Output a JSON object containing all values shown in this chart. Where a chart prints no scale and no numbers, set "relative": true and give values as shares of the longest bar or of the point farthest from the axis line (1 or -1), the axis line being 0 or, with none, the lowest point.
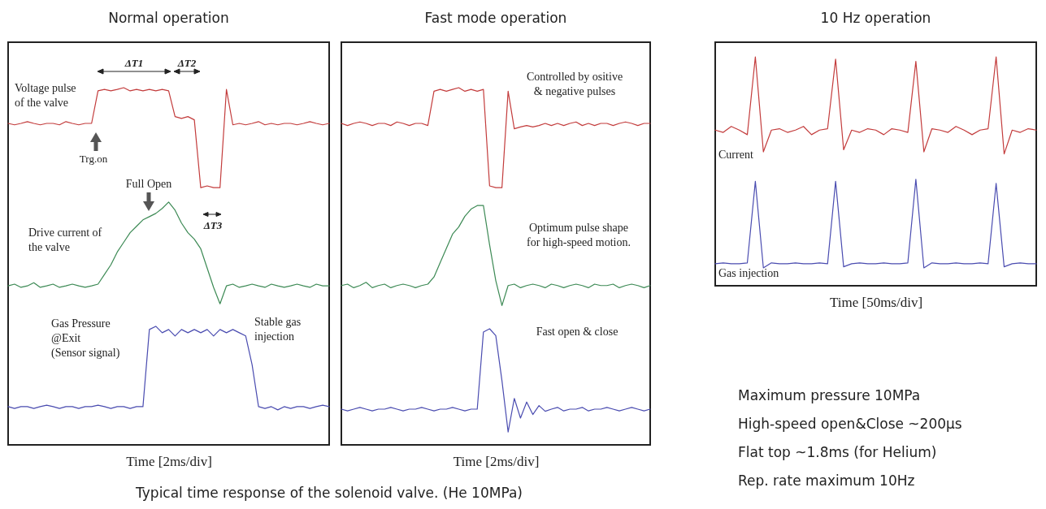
{
  "chart_data": [
    {
      "type": "line",
      "title": "Normal operation",
      "xlabel": "Time [2ms/div]",
      "relative": true,
      "tick_labels": false,
      "categories": [
        null,
        null,
        null,
        null,
        null,
        null,
        null,
        null,
        null,
        null,
        null,
        null,
        null,
        null,
        null,
        null,
        null,
        null,
        null,
        null,
        null,
        null,
        null,
        null,
        null,
        null,
        null,
        null,
        null,
        null,
        null,
        null,
        null,
        null,
        null,
        null,
        null,
        null,
        null,
        null,
        null,
        null,
        null,
        null,
        null,
        null,
        null,
        null,
        null,
        null,
        null
      ],
      "series": [
        {
          "color": "#c33c3c",
          "values": [
            0.9,
            0.896,
            0.9,
            0.905,
            0.9,
            0.896,
            0.9,
            0.9,
            0.896,
            0.905,
            0.9,
            0.896,
            0.9,
            0.9,
            0.991,
            0.995,
            0.991,
            0.995,
            1.0,
            0.991,
            0.995,
            0.991,
            0.995,
            0.991,
            0.995,
            0.991,
            0.919,
            0.914,
            0.919,
            0.91,
            0.72,
            0.725,
            0.72,
            0.72,
            0.995,
            0.896,
            0.9,
            0.896,
            0.9,
            0.905,
            0.896,
            0.9,
            0.896,
            0.9,
            0.9,
            0.896,
            0.9,
            0.905,
            0.9,
            0.896,
            0.9
          ]
        },
        {
          "color": "#3d8a55",
          "values": [
            0.445,
            0.45,
            0.441,
            0.445,
            0.454,
            0.441,
            0.445,
            0.45,
            0.441,
            0.445,
            0.45,
            0.445,
            0.441,
            0.445,
            0.45,
            0.477,
            0.504,
            0.54,
            0.567,
            0.594,
            0.612,
            0.63,
            0.639,
            0.648,
            0.662,
            0.68,
            0.657,
            0.621,
            0.594,
            0.576,
            0.549,
            0.495,
            0.441,
            0.395,
            0.445,
            0.45,
            0.441,
            0.445,
            0.45,
            0.445,
            0.441,
            0.45,
            0.445,
            0.441,
            0.445,
            0.45,
            0.445,
            0.441,
            0.45,
            0.445,
            0.445
          ]
        },
        {
          "color": "#4a4cb0",
          "values": [
            0.107,
            0.102,
            0.107,
            0.107,
            0.102,
            0.107,
            0.111,
            0.107,
            0.102,
            0.107,
            0.107,
            0.102,
            0.107,
            0.107,
            0.111,
            0.107,
            0.102,
            0.107,
            0.107,
            0.102,
            0.107,
            0.107,
            0.323,
            0.332,
            0.314,
            0.323,
            0.305,
            0.323,
            0.314,
            0.323,
            0.314,
            0.323,
            0.305,
            0.323,
            0.314,
            0.323,
            0.314,
            0.305,
            0.224,
            0.107,
            0.102,
            0.107,
            0.098,
            0.107,
            0.102,
            0.107,
            0.107,
            0.102,
            0.107,
            0.111,
            0.107
          ]
        }
      ],
      "annotations": [
        "ΔT1",
        "ΔT2",
        "ΔT3",
        "Voltage pulse\nof the valve",
        "Trg.on",
        "Full Open",
        "Drive current of\nthe valve",
        "Gas Pressure\n@Exit\n(Sensor signal)",
        "Stable gas\ninjection",
        "Typical time response of the solenoid valve. (He 10MPa)"
      ]
    },
    {
      "type": "line",
      "title": "Fast mode operation",
      "xlabel": "Time [2ms/div]",
      "relative": true,
      "tick_labels": false,
      "categories": [
        null,
        null,
        null,
        null,
        null,
        null,
        null,
        null,
        null,
        null,
        null,
        null,
        null,
        null,
        null,
        null,
        null,
        null,
        null,
        null,
        null,
        null,
        null,
        null,
        null,
        null,
        null,
        null,
        null,
        null,
        null,
        null,
        null,
        null,
        null,
        null,
        null,
        null,
        null,
        null,
        null,
        null,
        null,
        null,
        null,
        null,
        null,
        null,
        null,
        null,
        null
      ],
      "series": [
        {
          "color": "#c33c3c",
          "values": [
            0.9,
            0.894,
            0.9,
            0.904,
            0.9,
            0.894,
            0.9,
            0.9,
            0.894,
            0.904,
            0.9,
            0.894,
            0.9,
            0.9,
            0.894,
            0.99,
            0.995,
            0.99,
            0.995,
            1.0,
            0.99,
            0.995,
            0.99,
            0.995,
            0.725,
            0.72,
            0.72,
            0.99,
            0.885,
            0.89,
            0.894,
            0.89,
            0.894,
            0.9,
            0.894,
            0.9,
            0.894,
            0.9,
            0.904,
            0.894,
            0.9,
            0.894,
            0.9,
            0.9,
            0.894,
            0.9,
            0.904,
            0.9,
            0.894,
            0.9,
            0.9
          ]
        },
        {
          "color": "#3d8a55",
          "values": [
            0.446,
            0.45,
            0.44,
            0.446,
            0.455,
            0.44,
            0.446,
            0.45,
            0.44,
            0.446,
            0.45,
            0.446,
            0.44,
            0.446,
            0.45,
            0.47,
            0.51,
            0.55,
            0.59,
            0.61,
            0.64,
            0.66,
            0.67,
            0.67,
            0.56,
            0.46,
            0.39,
            0.446,
            0.45,
            0.44,
            0.446,
            0.45,
            0.446,
            0.44,
            0.45,
            0.446,
            0.44,
            0.446,
            0.45,
            0.446,
            0.44,
            0.45,
            0.446,
            0.446,
            0.45,
            0.44,
            0.446,
            0.45,
            0.446,
            0.44,
            0.446
          ]
        },
        {
          "color": "#4a4cb0",
          "values": [
            0.1,
            0.095,
            0.1,
            0.105,
            0.1,
            0.095,
            0.1,
            0.1,
            0.105,
            0.1,
            0.095,
            0.1,
            0.1,
            0.105,
            0.1,
            0.095,
            0.1,
            0.1,
            0.105,
            0.1,
            0.095,
            0.1,
            0.1,
            0.316,
            0.325,
            0.306,
            0.18,
            0.036,
            0.13,
            0.075,
            0.12,
            0.085,
            0.11,
            0.094,
            0.1,
            0.105,
            0.095,
            0.1,
            0.1,
            0.105,
            0.095,
            0.1,
            0.1,
            0.105,
            0.1,
            0.095,
            0.1,
            0.105,
            0.1,
            0.095,
            0.1
          ]
        }
      ],
      "annotations": [
        "Controlled by ositive\n& negative pulses",
        "Optimum pulse shape\nfor high-speed motion.",
        "Fast open & close"
      ]
    },
    {
      "type": "line",
      "title": "10 Hz operation",
      "xlabel": "Time [50ms/div]",
      "relative": true,
      "tick_labels": false,
      "categories": [
        null,
        null,
        null,
        null,
        null,
        null,
        null,
        null,
        null,
        null,
        null,
        null,
        null,
        null,
        null,
        null,
        null,
        null,
        null,
        null,
        null,
        null,
        null,
        null,
        null,
        null,
        null,
        null,
        null,
        null,
        null,
        null,
        null,
        null,
        null,
        null,
        null,
        null,
        null,
        null,
        null
      ],
      "series": [
        {
          "color": "#c33c3c",
          "values": [
            0.68,
            0.67,
            0.696,
            0.68,
            0.66,
            1.0,
            0.585,
            0.68,
            0.686,
            0.67,
            0.68,
            0.696,
            0.66,
            0.68,
            0.686,
            0.99,
            0.594,
            0.68,
            0.67,
            0.686,
            0.68,
            0.66,
            0.686,
            0.68,
            0.67,
            0.98,
            0.585,
            0.686,
            0.68,
            0.67,
            0.696,
            0.68,
            0.66,
            0.68,
            0.686,
            1.0,
            0.576,
            0.68,
            0.67,
            0.686,
            0.68
          ]
        },
        {
          "color": "#4a4cb0",
          "values": [
            0.096,
            0.1,
            0.096,
            0.096,
            0.1,
            0.456,
            0.078,
            0.1,
            0.096,
            0.096,
            0.1,
            0.096,
            0.096,
            0.1,
            0.096,
            0.456,
            0.083,
            0.096,
            0.1,
            0.096,
            0.096,
            0.1,
            0.096,
            0.096,
            0.1,
            0.465,
            0.078,
            0.1,
            0.096,
            0.096,
            0.1,
            0.096,
            0.096,
            0.1,
            0.096,
            0.447,
            0.083,
            0.096,
            0.1,
            0.096,
            0.096
          ]
        }
      ],
      "annotations": [
        "Current",
        "Gas injection",
        "Maximum pressure 10MPa",
        "High-speed open&Close ~200μs",
        "Flat top ~1.8ms (for Helium)",
        "Rep. rate maximum 10Hz"
      ]
    }
  ]
}
